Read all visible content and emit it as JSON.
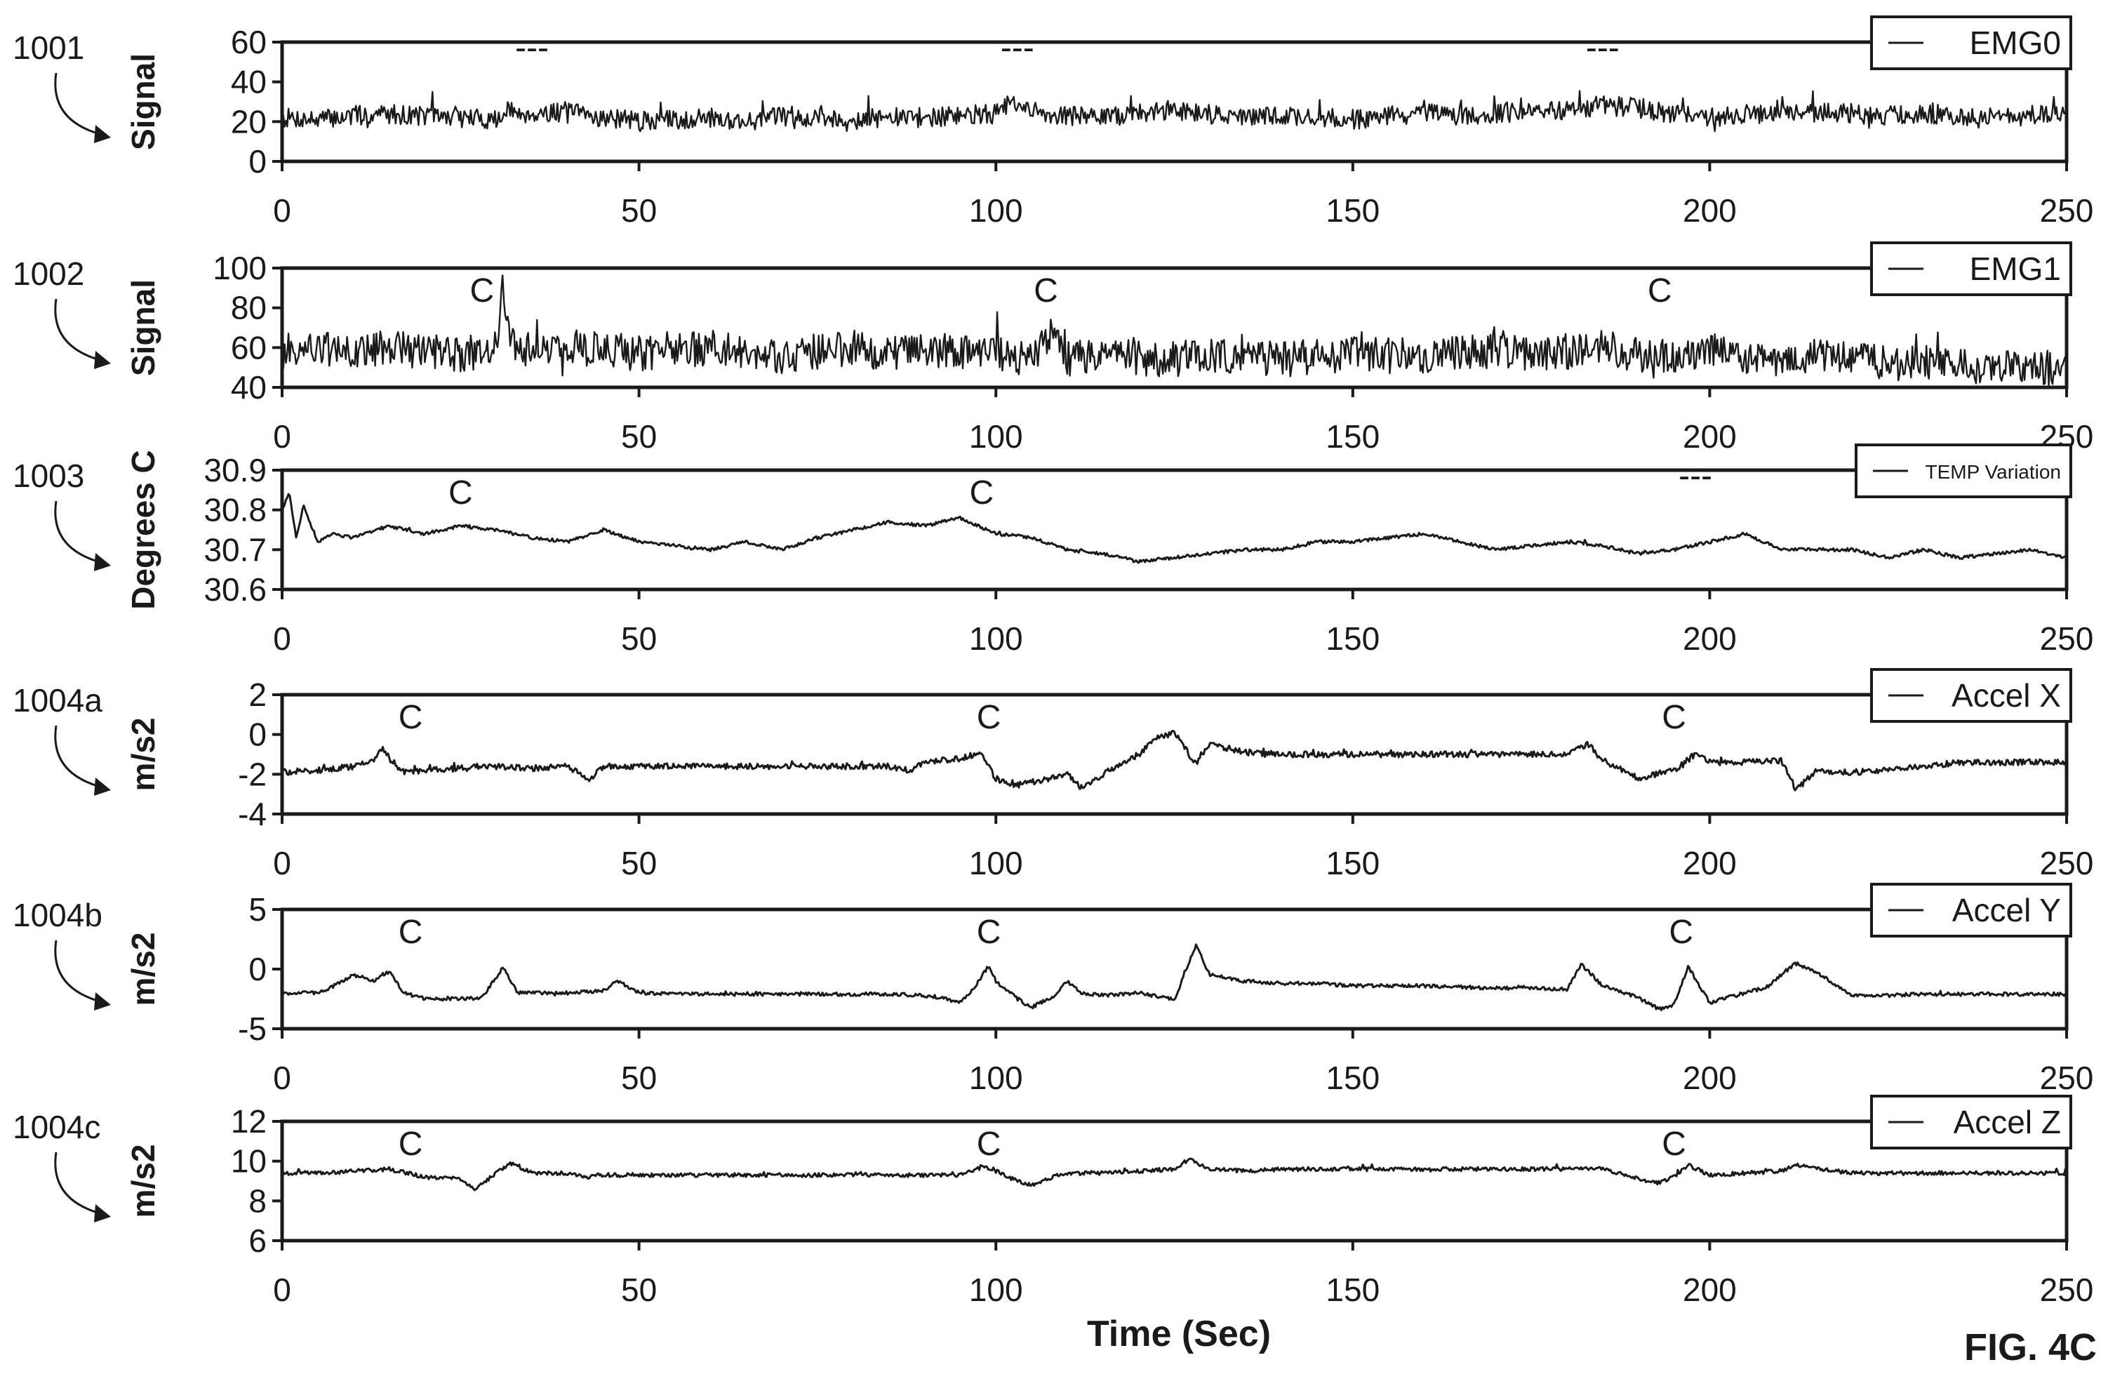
{
  "figure_label": "FIG. 4C",
  "x_axis_title": "Time (Sec)",
  "colors": {
    "ink": "#1a1a1a",
    "background": "#ffffff"
  },
  "chart_data": [
    {
      "type": "line",
      "ref": "1001",
      "ylabel": "Signal",
      "legend": "EMG0",
      "legend_position": "top-right",
      "xlim": [
        0,
        250
      ],
      "ylim": [
        0,
        60
      ],
      "xticks": [
        "0",
        "50",
        "100",
        "150",
        "200",
        "250"
      ],
      "yticks": [
        "60",
        "40",
        "20",
        "0"
      ],
      "annotations": [
        {
          "x": 35,
          "text": "---"
        },
        {
          "x": 103,
          "text": "---"
        },
        {
          "x": 185,
          "text": "---"
        }
      ],
      "series": [
        {
          "noise": 5,
          "x": [
            0,
            5,
            10,
            15,
            20,
            25,
            30,
            32,
            35,
            40,
            45,
            50,
            55,
            60,
            65,
            70,
            75,
            80,
            85,
            90,
            95,
            100,
            102,
            105,
            110,
            115,
            120,
            125,
            130,
            135,
            140,
            145,
            150,
            155,
            160,
            165,
            170,
            175,
            180,
            185,
            190,
            195,
            200,
            205,
            210,
            215,
            220,
            225,
            230,
            235,
            240,
            245,
            250
          ],
          "y": [
            22,
            21,
            23,
            24,
            23,
            22,
            21,
            25,
            24,
            25,
            22,
            20,
            21,
            22,
            20,
            23,
            22,
            21,
            22,
            22,
            23,
            24,
            29,
            25,
            23,
            22,
            24,
            26,
            24,
            22,
            23,
            22,
            21,
            23,
            24,
            23,
            24,
            25,
            26,
            28,
            27,
            24,
            22,
            24,
            23,
            25,
            24,
            23,
            24,
            23,
            22,
            23,
            24
          ]
        }
      ]
    },
    {
      "type": "line",
      "ref": "1002",
      "ylabel": "Signal",
      "legend": "EMG1",
      "legend_position": "top-right",
      "xlim": [
        0,
        250
      ],
      "ylim": [
        40,
        100
      ],
      "xticks": [
        "0",
        "50",
        "100",
        "150",
        "200",
        "250"
      ],
      "yticks": [
        "100",
        "80",
        "60",
        "40"
      ],
      "annotations": [
        {
          "x": 28,
          "text": "C"
        },
        {
          "x": 107,
          "text": "C"
        },
        {
          "x": 193,
          "text": "C"
        }
      ],
      "series": [
        {
          "noise": 9,
          "x": [
            0,
            5,
            10,
            15,
            20,
            25,
            30,
            31,
            32,
            35,
            40,
            45,
            50,
            55,
            60,
            65,
            70,
            75,
            80,
            85,
            90,
            95,
            100,
            105,
            108,
            110,
            115,
            120,
            125,
            130,
            135,
            140,
            145,
            150,
            155,
            160,
            165,
            170,
            175,
            180,
            185,
            190,
            195,
            200,
            205,
            210,
            215,
            220,
            225,
            230,
            235,
            240,
            245,
            250
          ],
          "y": [
            58,
            60,
            57,
            60,
            58,
            56,
            60,
            92,
            62,
            58,
            60,
            59,
            57,
            58,
            60,
            57,
            56,
            58,
            60,
            57,
            58,
            57,
            56,
            55,
            68,
            54,
            56,
            55,
            54,
            56,
            55,
            54,
            55,
            57,
            56,
            56,
            58,
            58,
            57,
            58,
            60,
            56,
            55,
            60,
            56,
            53,
            58,
            55,
            52,
            52,
            51,
            51,
            50,
            50
          ]
        }
      ]
    },
    {
      "type": "line",
      "ref": "1003",
      "ylabel": "Degrees C",
      "legend": "TEMP Variation",
      "legend_position": "top-right",
      "xlim": [
        0,
        250
      ],
      "ylim": [
        30.6,
        30.9
      ],
      "xticks": [
        "0",
        "50",
        "100",
        "150",
        "200",
        "250"
      ],
      "yticks": [
        "30.9",
        "30.8",
        "30.7",
        "30.6"
      ],
      "annotations": [
        {
          "x": 25,
          "text": "C"
        },
        {
          "x": 98,
          "text": "C"
        },
        {
          "x": 198,
          "text": "---"
        }
      ],
      "series": [
        {
          "noise": 0.004,
          "x": [
            0,
            1,
            2,
            3,
            4,
            5,
            7,
            10,
            15,
            20,
            25,
            30,
            35,
            40,
            45,
            50,
            55,
            60,
            65,
            70,
            75,
            80,
            85,
            90,
            95,
            100,
            105,
            110,
            115,
            120,
            125,
            130,
            135,
            140,
            145,
            150,
            155,
            160,
            165,
            170,
            175,
            180,
            185,
            190,
            195,
            200,
            205,
            210,
            215,
            220,
            225,
            230,
            235,
            240,
            245,
            250
          ],
          "y": [
            30.8,
            30.84,
            30.73,
            30.81,
            30.76,
            30.72,
            30.74,
            30.73,
            30.76,
            30.74,
            30.76,
            30.75,
            30.73,
            30.72,
            30.75,
            30.72,
            30.71,
            30.7,
            30.72,
            30.7,
            30.73,
            30.75,
            30.77,
            30.76,
            30.78,
            30.74,
            30.73,
            30.7,
            30.69,
            30.67,
            30.68,
            30.69,
            30.7,
            30.7,
            30.72,
            30.72,
            30.73,
            30.74,
            30.72,
            30.7,
            30.71,
            30.72,
            30.71,
            30.69,
            30.7,
            30.72,
            30.74,
            30.7,
            30.7,
            30.7,
            30.68,
            30.7,
            30.68,
            30.69,
            30.7,
            30.68
          ]
        }
      ]
    },
    {
      "type": "line",
      "ref": "1004a",
      "ylabel": "m/s2",
      "legend": "Accel X",
      "legend_position": "top-right",
      "xlim": [
        0,
        250
      ],
      "ylim": [
        -4,
        2
      ],
      "xticks": [
        "0",
        "50",
        "100",
        "150",
        "200",
        "250"
      ],
      "yticks": [
        "2",
        "0",
        "-2",
        "-4"
      ],
      "annotations": [
        {
          "x": 18,
          "text": "C"
        },
        {
          "x": 99,
          "text": "C"
        },
        {
          "x": 195,
          "text": "C"
        }
      ],
      "series": [
        {
          "noise": 0.15,
          "x": [
            0,
            5,
            10,
            13,
            14,
            15,
            17,
            20,
            25,
            30,
            35,
            40,
            43,
            45,
            50,
            55,
            60,
            65,
            70,
            75,
            80,
            85,
            88,
            90,
            95,
            98,
            100,
            102,
            105,
            110,
            112,
            115,
            120,
            122,
            125,
            128,
            130,
            135,
            140,
            145,
            150,
            155,
            160,
            165,
            170,
            175,
            180,
            183,
            185,
            190,
            195,
            198,
            200,
            205,
            210,
            212,
            215,
            220,
            225,
            230,
            235,
            240,
            245,
            250
          ],
          "y": [
            -1.9,
            -1.8,
            -1.6,
            -1.3,
            -0.7,
            -1.2,
            -1.9,
            -1.8,
            -1.7,
            -1.6,
            -1.7,
            -1.6,
            -2.3,
            -1.6,
            -1.6,
            -1.6,
            -1.6,
            -1.6,
            -1.6,
            -1.6,
            -1.6,
            -1.6,
            -1.8,
            -1.4,
            -1.2,
            -0.9,
            -2.2,
            -2.6,
            -2.4,
            -2.0,
            -2.7,
            -2.0,
            -1.0,
            -0.3,
            0.1,
            -1.5,
            -0.5,
            -0.9,
            -1.0,
            -1.0,
            -1.0,
            -1.0,
            -1.0,
            -1.0,
            -1.0,
            -1.0,
            -1.0,
            -0.5,
            -1.3,
            -2.2,
            -1.8,
            -1.0,
            -1.4,
            -1.4,
            -1.3,
            -2.8,
            -1.8,
            -1.9,
            -1.8,
            -1.6,
            -1.4,
            -1.4,
            -1.4,
            -1.4
          ]
        }
      ]
    },
    {
      "type": "line",
      "ref": "1004b",
      "ylabel": "m/s2",
      "legend": "Accel Y",
      "legend_position": "top-right",
      "xlim": [
        0,
        250
      ],
      "ylim": [
        -5,
        5
      ],
      "xticks": [
        "0",
        "50",
        "100",
        "150",
        "200",
        "250"
      ],
      "yticks": [
        "5",
        "0",
        "-5"
      ],
      "annotations": [
        {
          "x": 18,
          "text": "C"
        },
        {
          "x": 99,
          "text": "C"
        },
        {
          "x": 196,
          "text": "C"
        }
      ],
      "series": [
        {
          "noise": 0.15,
          "x": [
            0,
            5,
            7,
            10,
            13,
            15,
            17,
            20,
            25,
            28,
            31,
            33,
            35,
            40,
            45,
            47,
            50,
            55,
            60,
            65,
            70,
            75,
            80,
            85,
            90,
            93,
            95,
            97,
            99,
            100,
            103,
            105,
            108,
            110,
            112,
            115,
            120,
            123,
            125,
            128,
            130,
            135,
            140,
            145,
            150,
            155,
            160,
            165,
            170,
            175,
            180,
            182,
            185,
            190,
            193,
            195,
            197,
            200,
            205,
            208,
            212,
            215,
            220,
            225,
            230,
            235,
            240,
            245,
            250
          ],
          "y": [
            -2,
            -2,
            -1.5,
            -0.5,
            -1.0,
            -0.2,
            -2.0,
            -2.5,
            -2.5,
            -2.4,
            0.2,
            -2.0,
            -2.0,
            -2.0,
            -1.8,
            -1.0,
            -2.0,
            -2.1,
            -2.1,
            -2.1,
            -2.1,
            -2.1,
            -2.1,
            -2.1,
            -2.2,
            -2.5,
            -2.8,
            -1.5,
            0.3,
            -1.0,
            -2.5,
            -3.2,
            -2.3,
            -1.0,
            -2.0,
            -2.2,
            -2.0,
            -2.3,
            -2.6,
            2.0,
            -0.5,
            -1.0,
            -1.2,
            -1.2,
            -1.4,
            -1.4,
            -1.4,
            -1.5,
            -1.6,
            -1.6,
            -1.7,
            0.4,
            -1.4,
            -2.4,
            -3.4,
            -3.0,
            0.2,
            -2.8,
            -2.0,
            -1.5,
            0.5,
            -0.3,
            -2.2,
            -2.2,
            -2.1,
            -2.1,
            -2.1,
            -2.1,
            -2.1
          ]
        }
      ]
    },
    {
      "type": "line",
      "ref": "1004c",
      "ylabel": "m/s2",
      "legend": "Accel Z",
      "legend_position": "top-right",
      "xlim": [
        0,
        250
      ],
      "ylim": [
        6,
        12
      ],
      "xticks": [
        "0",
        "50",
        "100",
        "150",
        "200",
        "250"
      ],
      "yticks": [
        "12",
        "10",
        "8",
        "6"
      ],
      "annotations": [
        {
          "x": 18,
          "text": "C"
        },
        {
          "x": 99,
          "text": "C"
        },
        {
          "x": 195,
          "text": "C"
        }
      ],
      "series": [
        {
          "noise": 0.1,
          "x": [
            0,
            5,
            10,
            15,
            20,
            25,
            27,
            30,
            32,
            35,
            40,
            43,
            45,
            50,
            55,
            60,
            65,
            70,
            75,
            80,
            85,
            90,
            95,
            98,
            100,
            103,
            105,
            108,
            110,
            115,
            120,
            125,
            127,
            130,
            135,
            140,
            145,
            150,
            155,
            160,
            165,
            170,
            175,
            180,
            185,
            190,
            193,
            195,
            197,
            200,
            205,
            210,
            212,
            215,
            220,
            225,
            230,
            235,
            240,
            245,
            250
          ],
          "y": [
            9.4,
            9.4,
            9.5,
            9.6,
            9.2,
            9.1,
            8.6,
            9.4,
            9.9,
            9.4,
            9.4,
            9.2,
            9.3,
            9.3,
            9.3,
            9.3,
            9.3,
            9.3,
            9.3,
            9.3,
            9.3,
            9.3,
            9.3,
            9.7,
            9.5,
            9.0,
            8.8,
            9.2,
            9.4,
            9.4,
            9.5,
            9.6,
            10.1,
            9.6,
            9.5,
            9.6,
            9.6,
            9.6,
            9.6,
            9.6,
            9.6,
            9.6,
            9.6,
            9.6,
            9.6,
            9.1,
            8.9,
            9.2,
            9.8,
            9.3,
            9.4,
            9.5,
            9.8,
            9.6,
            9.4,
            9.4,
            9.4,
            9.4,
            9.4,
            9.4,
            9.4
          ]
        }
      ]
    }
  ]
}
